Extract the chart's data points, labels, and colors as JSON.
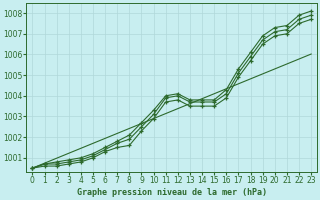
{
  "x": [
    0,
    1,
    2,
    3,
    4,
    5,
    6,
    7,
    8,
    9,
    10,
    11,
    12,
    13,
    14,
    15,
    16,
    17,
    18,
    19,
    20,
    21,
    22,
    23
  ],
  "line1": [
    1000.5,
    1000.7,
    1000.8,
    1000.9,
    1001.0,
    1001.2,
    1001.5,
    1001.8,
    1002.1,
    1002.7,
    1003.3,
    1004.0,
    1004.1,
    1003.8,
    1003.8,
    1003.8,
    1004.3,
    1005.3,
    1006.1,
    1006.9,
    1007.3,
    1007.4,
    1007.9,
    1008.1
  ],
  "line2": [
    1000.5,
    1000.7,
    1000.7,
    1000.8,
    1000.9,
    1001.1,
    1001.4,
    1001.7,
    1001.9,
    1002.5,
    1003.1,
    1003.9,
    1004.0,
    1003.7,
    1003.7,
    1003.7,
    1004.1,
    1005.1,
    1005.9,
    1006.7,
    1007.1,
    1007.2,
    1007.7,
    1007.9
  ],
  "line3": [
    1000.5,
    1000.6,
    1000.6,
    1000.7,
    1000.8,
    1001.0,
    1001.3,
    1001.5,
    1001.6,
    1002.3,
    1002.9,
    1003.7,
    1003.8,
    1003.5,
    1003.5,
    1003.5,
    1003.9,
    1004.9,
    1005.7,
    1006.5,
    1006.9,
    1007.0,
    1007.5,
    1007.7
  ],
  "line_straight": [
    1000.5,
    1000.74,
    1000.98,
    1001.22,
    1001.46,
    1001.7,
    1001.94,
    1002.18,
    1002.42,
    1002.66,
    1002.9,
    1003.14,
    1003.38,
    1003.62,
    1003.86,
    1004.1,
    1004.34,
    1004.58,
    1004.82,
    1005.06,
    1005.3,
    1005.54,
    1005.78,
    1006.02
  ],
  "line_color": "#2d6a2d",
  "bg_color": "#c8eef0",
  "grid_color": "#b0d8da",
  "title": "Graphe pression niveau de la mer (hPa)",
  "ylim": [
    1000.3,
    1008.5
  ],
  "yticks": [
    1001,
    1002,
    1003,
    1004,
    1005,
    1006,
    1007,
    1008
  ],
  "xlim": [
    -0.5,
    23.5
  ],
  "xticks": [
    0,
    1,
    2,
    3,
    4,
    5,
    6,
    7,
    8,
    9,
    10,
    11,
    12,
    13,
    14,
    15,
    16,
    17,
    18,
    19,
    20,
    21,
    22,
    23
  ]
}
